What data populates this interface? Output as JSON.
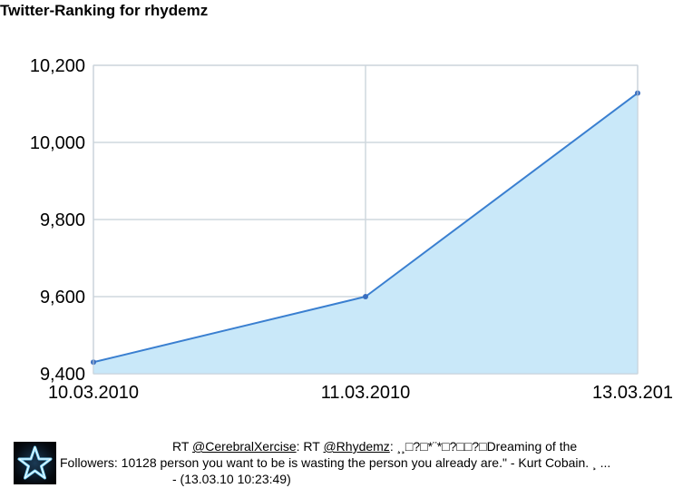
{
  "chart_data": {
    "type": "area",
    "title": "Twitter-Ranking for rhydemz",
    "x": [
      "10.03.2010",
      "11.03.2010",
      "13.03.201"
    ],
    "values": [
      9430,
      9600,
      10128
    ],
    "ylim": [
      9400,
      10200
    ],
    "yticks": [
      "10,200",
      "10,000",
      "9,800",
      "9,600",
      "9,400"
    ],
    "yticks_values": [
      10200,
      10000,
      9800,
      9600,
      9400
    ],
    "grid": true,
    "colors": {
      "line": "#3a7fd0",
      "fill": "#c9e8f9",
      "grid": "#cfd8de",
      "point": "#3a6fc0"
    }
  },
  "tweet": {
    "prefix": "RT ",
    "mention1": "@CerebralXercise",
    "middle": ": RT ",
    "mention2": "@Rhydemz",
    "text_line1_rest": ": ¸¸□?□*¨*□?□□?□Dreaming of the",
    "followers": "Followers: 10128",
    "text_line2_rest": " person you want to be is wasting the person you already are.\" - Kurt Cobain. ¸ ...",
    "timestamp": "- (13.03.10 10:23:49)"
  },
  "icons": {
    "avatar": "star-avatar-icon"
  }
}
